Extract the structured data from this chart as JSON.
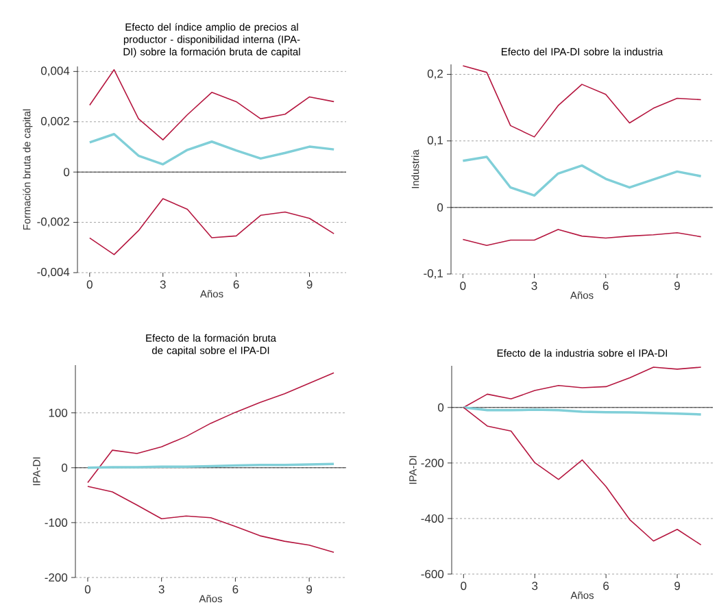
{
  "chart_data": [
    {
      "type": "line",
      "title": "Efecto del índice amplio de precios al productor - disponibilidad interna (IPA-DI) sobre la formación bruta de capital",
      "xlabel": "Años",
      "ylabel": "Formación bruta de capital",
      "x": [
        0,
        1,
        2,
        3,
        4,
        5,
        6,
        7,
        8,
        9,
        10
      ],
      "xlim": [
        -0.5,
        10.5
      ],
      "xticks": [
        0,
        3,
        6,
        9
      ],
      "ylim": [
        -0.004,
        0.0042
      ],
      "yticks": [
        {
          "value": -0.004,
          "label": "-0,004"
        },
        {
          "value": -0.002,
          "label": "-0,002"
        },
        0,
        {
          "value": 0.002,
          "label": "0,002"
        },
        {
          "value": 0.004,
          "label": "0,004"
        }
      ],
      "grid": "y",
      "line_style": "solid",
      "marker": "none",
      "ref_lines": [
        {
          "axis": "y",
          "value": 0,
          "color": "#000000",
          "line_style": "solid"
        }
      ],
      "series": [
        {
          "color": "#b5163f",
          "values": [
            0.00266,
            0.00407,
            0.00212,
            0.00128,
            0.00228,
            0.00317,
            0.0028,
            0.00212,
            0.0023,
            0.00299,
            0.0028
          ]
        },
        {
          "color": "#80cfd8",
          "values": [
            0.00118,
            0.00151,
            0.00065,
            0.00031,
            0.00088,
            0.00121,
            0.00086,
            0.00054,
            0.00076,
            0.00101,
            0.0009
          ]
        },
        {
          "color": "#b5163f",
          "values": [
            -0.00262,
            -0.00328,
            -0.00233,
            -0.00106,
            -0.00148,
            -0.00261,
            -0.00254,
            -0.00172,
            -0.00159,
            -0.00184,
            -0.00245
          ]
        }
      ]
    },
    {
      "type": "line",
      "title": "Efecto del IPA-DI sobre la industria",
      "xlabel": "Años",
      "ylabel": "Industria",
      "x": [
        0,
        1,
        2,
        3,
        4,
        5,
        6,
        7,
        8,
        9,
        10
      ],
      "xlim": [
        -0.5,
        10.5
      ],
      "xticks": [
        0,
        3,
        6,
        9
      ],
      "ylim": [
        -0.1,
        0.215
      ],
      "yticks": [
        {
          "value": -0.1,
          "label": "-0,1"
        },
        0,
        {
          "value": 0.1,
          "label": "0,1"
        },
        {
          "value": 0.2,
          "label": "0,2"
        }
      ],
      "grid": "y",
      "line_style": "solid",
      "marker": "none",
      "ref_lines": [
        {
          "axis": "y",
          "value": 0,
          "color": "#000000",
          "line_style": "solid"
        }
      ],
      "series": [
        {
          "color": "#b5163f",
          "values": [
            0.213,
            0.203,
            0.123,
            0.106,
            0.153,
            0.185,
            0.17,
            0.127,
            0.149,
            0.164,
            0.162
          ]
        },
        {
          "color": "#80cfd8",
          "values": [
            0.07,
            0.076,
            0.03,
            0.018,
            0.051,
            0.063,
            0.043,
            0.03,
            0.042,
            0.054,
            0.047
          ]
        },
        {
          "color": "#b5163f",
          "values": [
            -0.048,
            -0.057,
            -0.049,
            -0.049,
            -0.033,
            -0.043,
            -0.046,
            -0.043,
            -0.041,
            -0.038,
            -0.044
          ]
        }
      ]
    },
    {
      "type": "line",
      "title": "Efecto de la formación bruta de capital sobre el IPA-DI",
      "xlabel": "Años",
      "ylabel": "IPA-DI",
      "x": [
        0,
        1,
        2,
        3,
        4,
        5,
        6,
        7,
        8,
        9,
        10
      ],
      "xlim": [
        -0.5,
        10.5
      ],
      "xticks": [
        0,
        3,
        6,
        9
      ],
      "ylim": [
        -200,
        187
      ],
      "yticks": [
        -200,
        -100,
        0,
        100
      ],
      "grid": "y",
      "line_style": "solid",
      "marker": "none",
      "ref_lines": [
        {
          "axis": "y",
          "value": 0,
          "color": "#000000",
          "line_style": "solid"
        }
      ],
      "series": [
        {
          "color": "#b5163f",
          "values": [
            -27,
            32,
            26,
            38,
            57,
            81,
            101,
            119,
            135,
            154,
            173
          ]
        },
        {
          "color": "#80cfd8",
          "values": [
            0,
            1,
            1,
            2,
            2,
            3,
            4,
            5,
            5,
            6,
            7
          ]
        },
        {
          "color": "#b5163f",
          "values": [
            -34,
            -44,
            -68,
            -93,
            -88,
            -91,
            -107,
            -124,
            -134,
            -141,
            -154
          ]
        }
      ]
    },
    {
      "type": "line",
      "title": "Efecto de la industria sobre el IPA-DI",
      "xlabel": "Años",
      "ylabel": "IPA-DI",
      "x": [
        0,
        1,
        2,
        3,
        4,
        5,
        6,
        7,
        8,
        9,
        10
      ],
      "xlim": [
        -0.5,
        10.5
      ],
      "xticks": [
        0,
        3,
        6,
        9
      ],
      "ylim": [
        -600,
        150
      ],
      "yticks": [
        -600,
        -400,
        -200,
        0
      ],
      "grid": "y",
      "line_style": "solid",
      "marker": "none",
      "ref_lines": [
        {
          "axis": "y",
          "value": 0,
          "color": "#000000",
          "line_style": "solid"
        }
      ],
      "series": [
        {
          "color": "#b5163f",
          "values": [
            0,
            48,
            31,
            61,
            79,
            71,
            75,
            107,
            145,
            138,
            145
          ]
        },
        {
          "color": "#80cfd8",
          "values": [
            0,
            -10,
            -10,
            -8,
            -10,
            -15,
            -17,
            -18,
            -20,
            -22,
            -25
          ]
        },
        {
          "color": "#b5163f",
          "values": [
            0,
            -67,
            -85,
            -199,
            -259,
            -189,
            -285,
            -404,
            -481,
            -439,
            -495
          ]
        }
      ]
    }
  ]
}
